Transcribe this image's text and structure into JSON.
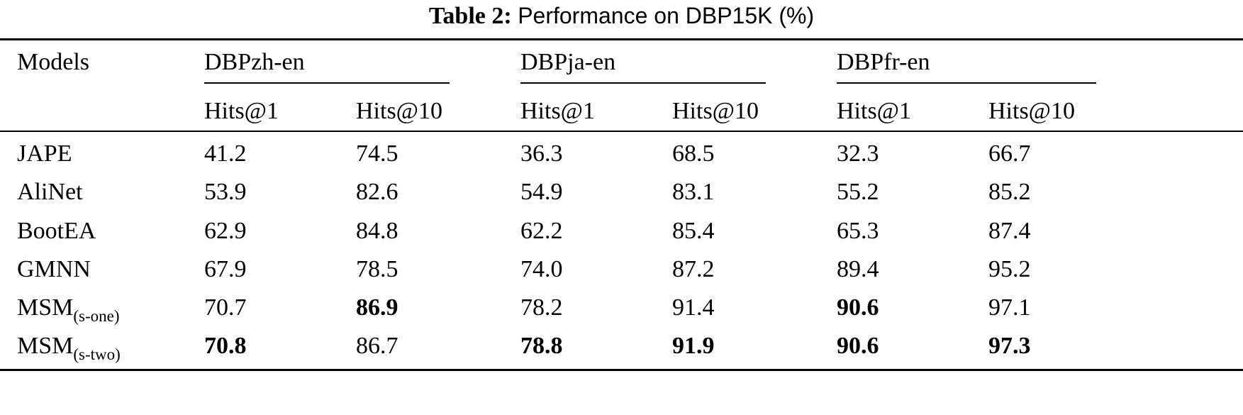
{
  "caption": {
    "label": "Table 2:",
    "text": "Performance on DBP15K (%)"
  },
  "header": {
    "models_label": "Models",
    "groups": [
      "DBPzh-en",
      "DBPja-en",
      "DBPfr-en"
    ],
    "metrics": [
      "Hits@1",
      "Hits@10",
      "Hits@1",
      "Hits@10",
      "Hits@1",
      "Hits@10"
    ]
  },
  "rows": [
    {
      "model": "JAPE",
      "model_sub": "",
      "values": [
        "41.2",
        "74.5",
        "36.3",
        "68.5",
        "32.3",
        "66.7"
      ],
      "bold": [
        false,
        false,
        false,
        false,
        false,
        false
      ]
    },
    {
      "model": "AliNet",
      "model_sub": "",
      "values": [
        "53.9",
        "82.6",
        "54.9",
        "83.1",
        "55.2",
        "85.2"
      ],
      "bold": [
        false,
        false,
        false,
        false,
        false,
        false
      ]
    },
    {
      "model": "BootEA",
      "model_sub": "",
      "values": [
        "62.9",
        "84.8",
        "62.2",
        "85.4",
        "65.3",
        "87.4"
      ],
      "bold": [
        false,
        false,
        false,
        false,
        false,
        false
      ]
    },
    {
      "model": "GMNN",
      "model_sub": "",
      "values": [
        "67.9",
        "78.5",
        "74.0",
        "87.2",
        "89.4",
        "95.2"
      ],
      "bold": [
        false,
        false,
        false,
        false,
        false,
        false
      ]
    },
    {
      "model": "MSM",
      "model_sub": "(s-one)",
      "values": [
        "70.7",
        "86.9",
        "78.2",
        "91.4",
        "90.6",
        "97.1"
      ],
      "bold": [
        false,
        true,
        false,
        false,
        true,
        false
      ]
    },
    {
      "model": "MSM",
      "model_sub": "(s-two)",
      "values": [
        "70.8",
        "86.7",
        "78.8",
        "91.9",
        "90.6",
        "97.3"
      ],
      "bold": [
        true,
        false,
        true,
        true,
        true,
        true
      ]
    }
  ]
}
